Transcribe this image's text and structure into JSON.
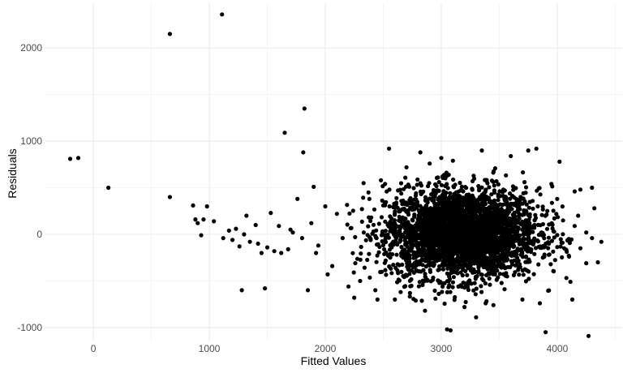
{
  "chart_data": {
    "type": "scatter",
    "title": "",
    "xlabel": "Fitted Values",
    "ylabel": "Residuals",
    "xlim": [
      -420,
      4560
    ],
    "ylim": [
      -1140,
      2480
    ],
    "x_ticks": [
      0,
      1000,
      2000,
      3000,
      4000
    ],
    "x_tick_labels": [
      "0",
      "1000",
      "2000",
      "3000",
      "4000"
    ],
    "y_ticks": [
      -1000,
      0,
      1000,
      2000
    ],
    "y_tick_labels": [
      "-1000",
      "0",
      "1000",
      "2000"
    ],
    "grid": true,
    "theme": "minimal",
    "point_color": "#000000",
    "grid_major_color": "#ebebeb",
    "grid_minor_color": "#f5f5f5",
    "series": [
      {
        "points": [
          [
            -200,
            810
          ],
          [
            -130,
            820
          ],
          [
            130,
            500
          ],
          [
            660,
            2150
          ],
          [
            1110,
            2360
          ],
          [
            660,
            400
          ],
          [
            860,
            310
          ],
          [
            880,
            160
          ],
          [
            900,
            120
          ],
          [
            930,
            -10
          ],
          [
            950,
            160
          ],
          [
            980,
            300
          ],
          [
            1040,
            140
          ],
          [
            1120,
            -40
          ],
          [
            1170,
            40
          ],
          [
            1200,
            -60
          ],
          [
            1230,
            60
          ],
          [
            1260,
            -130
          ],
          [
            1280,
            -600
          ],
          [
            1300,
            0
          ],
          [
            1320,
            200
          ],
          [
            1350,
            -80
          ],
          [
            1400,
            100
          ],
          [
            1420,
            -100
          ],
          [
            1450,
            -200
          ],
          [
            1480,
            -580
          ],
          [
            1500,
            -140
          ],
          [
            1530,
            230
          ],
          [
            1560,
            -180
          ],
          [
            1600,
            90
          ],
          [
            1620,
            -200
          ],
          [
            1650,
            1090
          ],
          [
            1680,
            -160
          ],
          [
            1700,
            50
          ],
          [
            1720,
            20
          ],
          [
            1760,
            380
          ],
          [
            1800,
            -40
          ],
          [
            1810,
            880
          ],
          [
            1820,
            1350
          ],
          [
            1850,
            -600
          ],
          [
            1880,
            120
          ],
          [
            1900,
            510
          ],
          [
            1920,
            -200
          ],
          [
            1940,
            -120
          ],
          [
            2000,
            300
          ],
          [
            2020,
            -430
          ],
          [
            2060,
            -340
          ],
          [
            2100,
            220
          ],
          [
            2150,
            -40
          ],
          [
            2200,
            -560
          ],
          [
            2250,
            -680
          ],
          [
            2300,
            -500
          ],
          [
            2330,
            550
          ],
          [
            2450,
            -700
          ],
          [
            2480,
            580
          ],
          [
            2550,
            920
          ],
          [
            2600,
            -700
          ],
          [
            2650,
            -620
          ],
          [
            2700,
            720
          ],
          [
            2730,
            -630
          ],
          [
            2780,
            -710
          ],
          [
            2820,
            880
          ],
          [
            2860,
            -820
          ],
          [
            2900,
            760
          ],
          [
            2950,
            -690
          ],
          [
            3000,
            820
          ],
          [
            3050,
            -1020
          ],
          [
            3080,
            -1030
          ],
          [
            3100,
            790
          ],
          [
            3200,
            -780
          ],
          [
            3300,
            -890
          ],
          [
            3350,
            900
          ],
          [
            3450,
            -760
          ],
          [
            3600,
            840
          ],
          [
            3700,
            -700
          ],
          [
            3750,
            900
          ],
          [
            3820,
            920
          ],
          [
            3850,
            -740
          ],
          [
            3900,
            -1050
          ],
          [
            3950,
            540
          ],
          [
            4000,
            380
          ],
          [
            4020,
            780
          ],
          [
            4100,
            -230
          ],
          [
            4130,
            -700
          ],
          [
            4150,
            460
          ],
          [
            4200,
            480
          ],
          [
            4250,
            -310
          ],
          [
            4270,
            -1090
          ],
          [
            4300,
            500
          ],
          [
            4320,
            280
          ],
          [
            4350,
            -300
          ],
          [
            4380,
            -80
          ],
          [
            4050,
            150
          ],
          [
            4100,
            -50
          ],
          [
            4150,
            90
          ],
          [
            4200,
            -150
          ],
          [
            4250,
            20
          ],
          [
            4300,
            -40
          ],
          [
            4180,
            200
          ],
          [
            4060,
            -150
          ]
        ],
        "cloud": {
          "n": 3200,
          "x_center": 3180,
          "x_spread": 330,
          "y_center": 10,
          "y_spread": 240,
          "x_min": 2100,
          "x_max": 4150,
          "y_min": -760,
          "y_max": 760
        }
      }
    ]
  }
}
